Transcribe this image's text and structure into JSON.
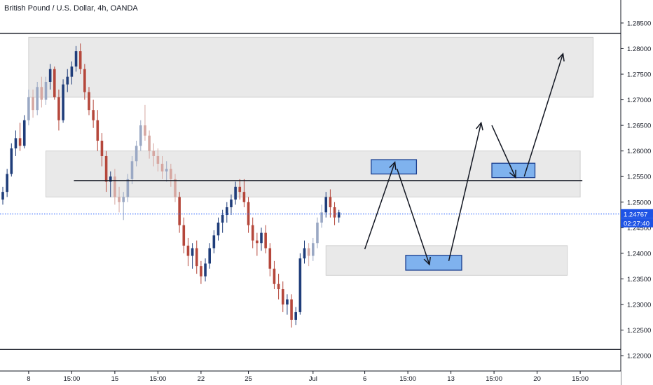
{
  "chart_data": {
    "type": "candlestick",
    "title": "British Pound / U.S. Dollar, 4h, OANDA",
    "ylim": [
      1.217,
      1.2895
    ],
    "y_ticks": [
      "1.28500",
      "1.28000",
      "1.27500",
      "1.27000",
      "1.26500",
      "1.26000",
      "1.25500",
      "1.25000",
      "1.24500",
      "1.24000",
      "1.23500",
      "1.23000",
      "1.22500",
      "1.22000"
    ],
    "x_ticks": [
      {
        "label": "8",
        "i": 6
      },
      {
        "label": "15:00",
        "i": 16
      },
      {
        "label": "15",
        "i": 26
      },
      {
        "label": "15:00",
        "i": 36
      },
      {
        "label": "22",
        "i": 46
      },
      {
        "label": "25",
        "i": 57
      },
      {
        "label": "Jul",
        "i": 72
      },
      {
        "label": "6",
        "i": 84
      },
      {
        "label": "15:00",
        "i": 94
      },
      {
        "label": "13",
        "i": 104
      },
      {
        "label": "15:00",
        "i": 114
      },
      {
        "label": "20",
        "i": 124
      },
      {
        "label": "15:00",
        "i": 134
      }
    ],
    "last_price": "1.24767",
    "last_price_value": 1.24767,
    "countdown": "02:27:40",
    "colors": {
      "up": "#1f3d7a",
      "down": "#b5473b",
      "up_faded": "#9aa8c4",
      "down_faded": "#d6a7a1",
      "zone_fill": "#e5e5e5",
      "zone_border": "#cfcfcf",
      "target_fill": "#7fb2ee",
      "target_border": "#1b3f8f",
      "price_line": "#2962ff",
      "price_tag": "#1e53e5"
    },
    "candles": [
      [
        1.2505,
        1.253,
        1.2495,
        1.252
      ],
      [
        1.252,
        1.2565,
        1.251,
        1.2555
      ],
      [
        1.2555,
        1.2615,
        1.255,
        1.2605
      ],
      [
        1.2605,
        1.264,
        1.259,
        1.2625
      ],
      [
        1.2625,
        1.2655,
        1.26,
        1.261
      ],
      [
        1.261,
        1.267,
        1.2605,
        1.266
      ],
      [
        1.266,
        1.272,
        1.265,
        1.2705
      ],
      [
        1.2705,
        1.272,
        1.2665,
        1.268
      ],
      [
        1.268,
        1.2735,
        1.267,
        1.2725
      ],
      [
        1.2725,
        1.2745,
        1.2685,
        1.27
      ],
      [
        1.27,
        1.2745,
        1.269,
        1.2735
      ],
      [
        1.2735,
        1.277,
        1.272,
        1.276
      ],
      [
        1.276,
        1.2765,
        1.27,
        1.2705
      ],
      [
        1.2705,
        1.272,
        1.264,
        1.266
      ],
      [
        1.266,
        1.274,
        1.2655,
        1.273
      ],
      [
        1.273,
        1.276,
        1.2715,
        1.2745
      ],
      [
        1.2745,
        1.2775,
        1.273,
        1.2765
      ],
      [
        1.2765,
        1.2805,
        1.2755,
        1.2795
      ],
      [
        1.2795,
        1.281,
        1.275,
        1.276
      ],
      [
        1.276,
        1.277,
        1.27,
        1.2715
      ],
      [
        1.2715,
        1.2725,
        1.267,
        1.268
      ],
      [
        1.268,
        1.27,
        1.2645,
        1.266
      ],
      [
        1.266,
        1.268,
        1.26,
        1.262
      ],
      [
        1.262,
        1.2635,
        1.257,
        1.259
      ],
      [
        1.259,
        1.26,
        1.252,
        1.254
      ],
      [
        1.254,
        1.256,
        1.251,
        1.255
      ],
      [
        1.255,
        1.2565,
        1.2495,
        1.251
      ],
      [
        1.251,
        1.253,
        1.248,
        1.25
      ],
      [
        1.25,
        1.252,
        1.2465,
        1.251
      ],
      [
        1.251,
        1.2555,
        1.25,
        1.2545
      ],
      [
        1.2545,
        1.259,
        1.2535,
        1.258
      ],
      [
        1.258,
        1.262,
        1.257,
        1.261
      ],
      [
        1.261,
        1.266,
        1.26,
        1.265
      ],
      [
        1.265,
        1.269,
        1.262,
        1.263
      ],
      [
        1.263,
        1.264,
        1.2585,
        1.26
      ],
      [
        1.26,
        1.2615,
        1.257,
        1.259
      ],
      [
        1.259,
        1.2605,
        1.256,
        1.2575
      ],
      [
        1.2575,
        1.259,
        1.2545,
        1.256
      ],
      [
        1.256,
        1.258,
        1.254,
        1.2565
      ],
      [
        1.2565,
        1.2575,
        1.253,
        1.2545
      ],
      [
        1.2545,
        1.2555,
        1.25,
        1.251
      ],
      [
        1.251,
        1.252,
        1.244,
        1.2455
      ],
      [
        1.2455,
        1.247,
        1.24,
        1.2415
      ],
      [
        1.2415,
        1.243,
        1.2375,
        1.2395
      ],
      [
        1.2395,
        1.242,
        1.237,
        1.241
      ],
      [
        1.241,
        1.2425,
        1.236,
        1.2375
      ],
      [
        1.2375,
        1.2385,
        1.234,
        1.2355
      ],
      [
        1.2355,
        1.239,
        1.2345,
        1.238
      ],
      [
        1.238,
        1.242,
        1.237,
        1.241
      ],
      [
        1.241,
        1.2445,
        1.24,
        1.2435
      ],
      [
        1.2435,
        1.247,
        1.2425,
        1.246
      ],
      [
        1.246,
        1.2485,
        1.244,
        1.2475
      ],
      [
        1.2475,
        1.25,
        1.246,
        1.249
      ],
      [
        1.249,
        1.2515,
        1.2475,
        1.2505
      ],
      [
        1.2505,
        1.254,
        1.2495,
        1.253
      ],
      [
        1.253,
        1.2545,
        1.2505,
        1.252
      ],
      [
        1.252,
        1.2545,
        1.249,
        1.25
      ],
      [
        1.25,
        1.251,
        1.244,
        1.2455
      ],
      [
        1.2455,
        1.247,
        1.241,
        1.2425
      ],
      [
        1.2425,
        1.244,
        1.2395,
        1.242
      ],
      [
        1.242,
        1.245,
        1.2405,
        1.244
      ],
      [
        1.244,
        1.2455,
        1.24,
        1.241
      ],
      [
        1.241,
        1.242,
        1.2355,
        1.237
      ],
      [
        1.237,
        1.2385,
        1.233,
        1.234
      ],
      [
        1.234,
        1.236,
        1.231,
        1.233
      ],
      [
        1.233,
        1.2345,
        1.2285,
        1.23
      ],
      [
        1.23,
        1.232,
        1.228,
        1.231
      ],
      [
        1.231,
        1.232,
        1.2255,
        1.227
      ],
      [
        1.227,
        1.2295,
        1.226,
        1.2285
      ],
      [
        1.2285,
        1.24,
        1.228,
        1.239
      ],
      [
        1.239,
        1.2425,
        1.238,
        1.241
      ],
      [
        1.241,
        1.242,
        1.2375,
        1.2395
      ],
      [
        1.2395,
        1.243,
        1.2385,
        1.242
      ],
      [
        1.242,
        1.247,
        1.241,
        1.246
      ],
      [
        1.246,
        1.2495,
        1.245,
        1.248
      ],
      [
        1.248,
        1.252,
        1.247,
        1.251
      ],
      [
        1.251,
        1.2525,
        1.247,
        1.249
      ],
      [
        1.249,
        1.25,
        1.2455,
        1.247
      ],
      [
        1.247,
        1.2485,
        1.246,
        1.248
      ]
    ],
    "faded_ranges": [
      [
        6,
        10
      ],
      [
        26,
        40
      ],
      [
        71,
        74
      ]
    ],
    "zones": [
      {
        "i0": 6.0,
        "i1": 137.0,
        "y0": 1.2822,
        "y1": 1.2705
      },
      {
        "i0": 10.0,
        "i1": 134.0,
        "y0": 1.26,
        "y1": 1.251
      },
      {
        "i0": 75.0,
        "i1": 131.0,
        "y0": 1.2415,
        "y1": 1.2357
      }
    ],
    "targets": [
      {
        "i0": 85.5,
        "i1": 96.0,
        "y0": 1.2583,
        "y1": 1.2555
      },
      {
        "i0": 93.5,
        "i1": 106.5,
        "y0": 1.2396,
        "y1": 1.2367
      },
      {
        "i0": 113.5,
        "i1": 123.5,
        "y0": 1.2576,
        "y1": 1.2548
      }
    ],
    "level_lines": [
      {
        "i0": 16.5,
        "i1": 134.5,
        "y": 1.2542
      }
    ],
    "border_lines": [
      1.283,
      1.2212
    ],
    "arrows": [
      {
        "pts": [
          [
            84.0,
            1.2408
          ],
          [
            91.0,
            1.2578
          ]
        ],
        "head": "end"
      },
      {
        "pts": [
          [
            91.5,
            1.2565
          ],
          [
            99.0,
            1.2378
          ]
        ],
        "head": "end"
      },
      {
        "pts": [
          [
            103.5,
            1.2385
          ],
          [
            111.0,
            1.2655
          ]
        ],
        "head": "end"
      },
      {
        "pts": [
          [
            113.5,
            1.265
          ],
          [
            119.0,
            1.2548
          ]
        ],
        "head": "end"
      },
      {
        "pts": [
          [
            121.0,
            1.255
          ],
          [
            130.0,
            1.279
          ]
        ],
        "head": "end"
      }
    ]
  }
}
